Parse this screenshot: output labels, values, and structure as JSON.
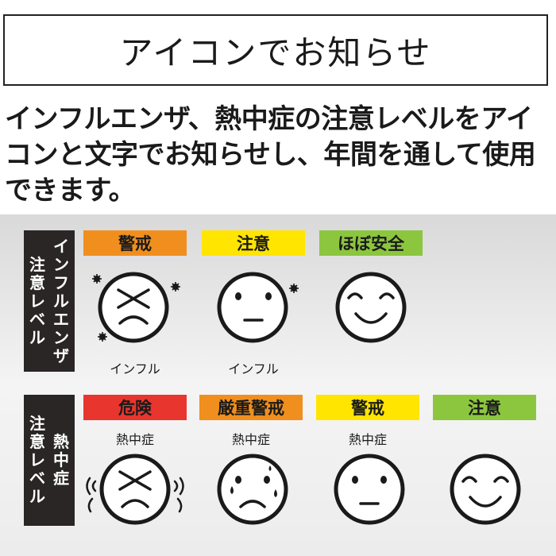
{
  "title": "アイコンでお知らせ",
  "description": "インフルエンザ、熱中症の注意レベルをアイコンと文字でお知らせし、年間を通して使用できます。",
  "influenza": {
    "side_label": [
      "インフル",
      "エンザ",
      "注意",
      "レベル"
    ],
    "levels": [
      {
        "label": "警戒",
        "color": "#f08f1e",
        "caption": "インフル",
        "face": "crying-cross-eyes-face-icon"
      },
      {
        "label": "注意",
        "color": "#ffe500",
        "caption": "インフル",
        "face": "neutral-face-icon"
      },
      {
        "label": "ほぼ安全",
        "color": "#8cc63e",
        "caption": "",
        "face": "smile-face-icon"
      }
    ]
  },
  "heatstroke": {
    "side_label": [
      "熱中症",
      "注意",
      "レベル"
    ],
    "levels": [
      {
        "label": "危険",
        "color": "#e8352e",
        "caption": "熱中症",
        "face": "crying-cross-eyes-face-icon"
      },
      {
        "label": "厳重警戒",
        "color": "#f08f1e",
        "caption": "熱中症",
        "face": "sweating-sad-face-icon"
      },
      {
        "label": "警戒",
        "color": "#ffe500",
        "caption": "熱中症",
        "face": "neutral-face-icon"
      },
      {
        "label": "注意",
        "color": "#8cc63e",
        "caption": "",
        "face": "smile-face-icon"
      }
    ]
  }
}
